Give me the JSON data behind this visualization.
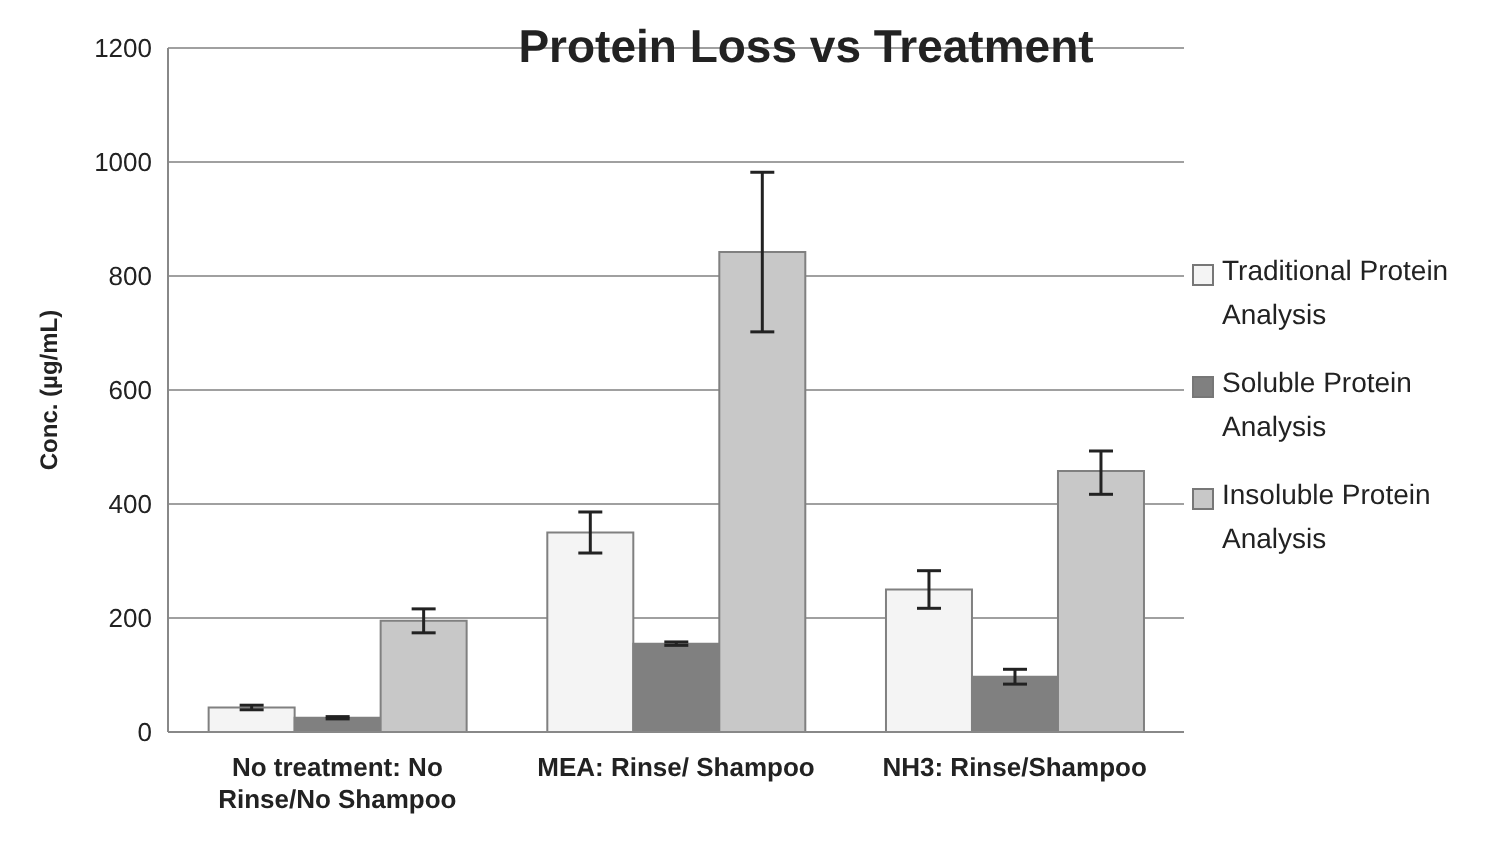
{
  "chart_data": {
    "type": "bar",
    "title": "Protein Loss vs Treatment",
    "ylabel": "Conc. (µg/mL)",
    "categories": [
      "No treatment: No Rinse/No Shampoo",
      "MEA: Rinse/ Shampoo",
      "NH3: Rinse/Shampoo"
    ],
    "series": [
      {
        "name": "Traditional Protein Analysis",
        "color": "#f4f4f4",
        "values": [
          43,
          350,
          250
        ],
        "errors": [
          4,
          36,
          33
        ]
      },
      {
        "name": "Soluble Protein Analysis",
        "color": "#808080",
        "values": [
          25,
          155,
          97
        ],
        "errors": [
          2,
          3,
          13
        ]
      },
      {
        "name": "Insoluble Protein Analysis",
        "color": "#c8c8c8",
        "values": [
          195,
          842,
          458
        ],
        "errors": [
          21,
          140,
          [
            417,
            493
          ]
        ]
      }
    ],
    "ylim": [
      0,
      1200
    ],
    "yticks": [
      0,
      200,
      400,
      600,
      800,
      1000,
      1200
    ],
    "grid": "y",
    "legend": "right"
  }
}
